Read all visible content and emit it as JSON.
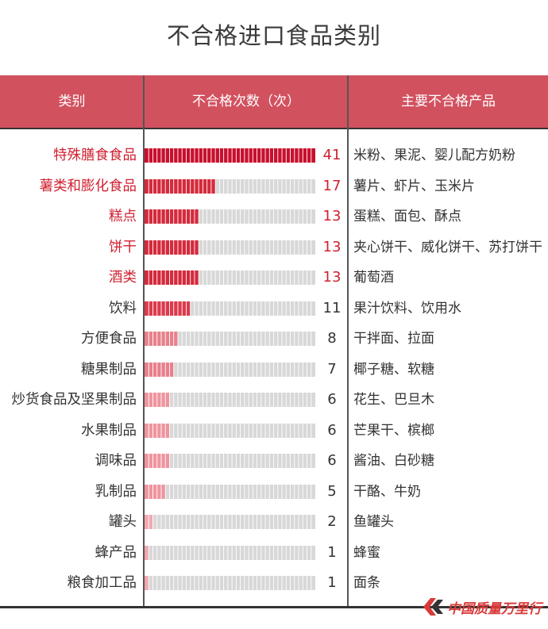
{
  "title": "不合格进口食品类别",
  "header": {
    "col_category": "类别",
    "col_count": "不合格次数（次）",
    "col_products": "主要不合格产品"
  },
  "colors": {
    "header_bg": "#d2515f",
    "highlight_text": "#d02030",
    "bar_track": "#d8d8d8"
  },
  "logo_text": "中国质量万里行",
  "chart_data": {
    "type": "bar",
    "orientation": "horizontal",
    "title": "不合格进口食品类别",
    "xlabel": "不合格次数（次）",
    "ylabel": "类别",
    "xlim": [
      0,
      41
    ],
    "categories": [
      "特殊膳食食品",
      "薯类和膨化食品",
      "糕点",
      "饼干",
      "酒类",
      "饮料",
      "方便食品",
      "糖果制品",
      "炒货食品及坚果制品",
      "水果制品",
      "调味品",
      "乳制品",
      "罐头",
      "蜂产品",
      "粮食加工品"
    ],
    "values": [
      41,
      17,
      13,
      13,
      13,
      11,
      8,
      7,
      6,
      6,
      6,
      5,
      2,
      1,
      1
    ],
    "products": [
      "米粉、果泥、婴儿配方奶粉",
      "薯片、虾片、玉米片",
      "蛋糕、面包、酥点",
      "夹心饼干、威化饼干、苏打饼干",
      "葡萄酒",
      "果汁饮料、饮用水",
      "干拌面、拉面",
      "椰子糖、软糖",
      "花生、巴旦木",
      "芒果干、槟榔",
      "酱油、白砂糖",
      "干酪、牛奶",
      "鱼罐头",
      "蜂蜜",
      "面条"
    ],
    "highlighted": [
      true,
      true,
      true,
      true,
      true,
      false,
      false,
      false,
      false,
      false,
      false,
      false,
      false,
      false,
      false
    ]
  }
}
